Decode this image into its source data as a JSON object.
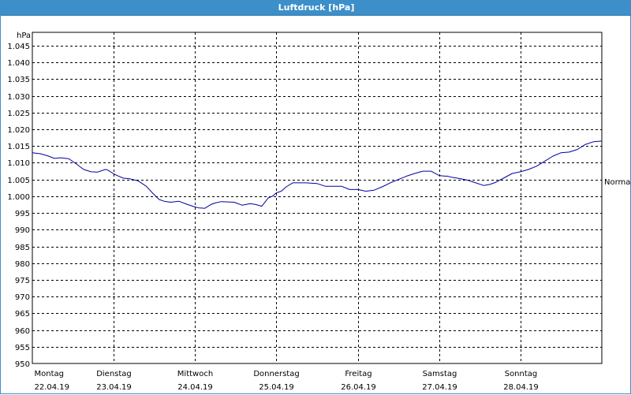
{
  "window": {
    "title": "Luftdruck [hPa]"
  },
  "colors": {
    "titlebar": "#3c8fc9",
    "line": "#0000a0",
    "grid": "#000000"
  },
  "chart_data": {
    "type": "line",
    "title": "Luftdruck [hPa]",
    "ylabel": "hPa",
    "ylim": [
      950,
      1049
    ],
    "y_ticks": [
      950,
      955,
      960,
      965,
      970,
      975,
      980,
      985,
      990,
      995,
      1000,
      1005,
      1010,
      1015,
      1020,
      1025,
      1030,
      1035,
      1040,
      1045
    ],
    "y_tick_labels": [
      "950",
      "955",
      "960",
      "965",
      "970",
      "975",
      "980",
      "985",
      "990",
      "995",
      "1.000",
      "1.005",
      "1.010",
      "1.015",
      "1.020",
      "1.025",
      "1.030",
      "1.035",
      "1.040",
      "1.045"
    ],
    "x_days": [
      {
        "weekday": "Montag",
        "date": "22.04.19"
      },
      {
        "weekday": "Dienstag",
        "date": "23.04.19"
      },
      {
        "weekday": "Mittwoch",
        "date": "24.04.19"
      },
      {
        "weekday": "Donnerstag",
        "date": "25.04.19"
      },
      {
        "weekday": "Freitag",
        "date": "26.04.19"
      },
      {
        "weekday": "Samstag",
        "date": "27.04.19"
      },
      {
        "weekday": "Sonntag",
        "date": "28.04.19"
      }
    ],
    "xlim_days": [
      0,
      7
    ],
    "grid": true,
    "annotations": [
      {
        "label": "Normal",
        "y": 1004.5
      }
    ],
    "series": [
      {
        "x_days": [
          0,
          0.1,
          0.2,
          0.27,
          0.35,
          0.45,
          0.55,
          0.63,
          0.72,
          0.8,
          0.9,
          0.93,
          1.0,
          1.06,
          1.12,
          1.2,
          1.3,
          1.4,
          1.48,
          1.56,
          1.62,
          1.7,
          1.8,
          1.9,
          2.0,
          2.05,
          2.12,
          2.2,
          2.25,
          2.32,
          2.4,
          2.48,
          2.58,
          2.68,
          2.75,
          2.82,
          2.9,
          2.95,
          3.0,
          3.06,
          3.12,
          3.2,
          3.3,
          3.36,
          3.5,
          3.6,
          3.7,
          3.8,
          3.9,
          4.0,
          4.1,
          4.2,
          4.3,
          4.4,
          4.5,
          4.6,
          4.7,
          4.8,
          4.9,
          5.0,
          5.07,
          5.1,
          5.15,
          5.25,
          5.35,
          5.45,
          5.55,
          5.62,
          5.7,
          5.8,
          5.9,
          6.0,
          6.1,
          6.2,
          6.3,
          6.4,
          6.5,
          6.6,
          6.7,
          6.8,
          6.9,
          7.0
        ],
        "values": [
          1013,
          1012.7,
          1012,
          1011.3,
          1011.5,
          1011.2,
          1009.5,
          1008,
          1007.3,
          1007.2,
          1008,
          1007.8,
          1006.7,
          1006,
          1005.4,
          1005.2,
          1004.6,
          1003,
          1000.9,
          999,
          998.5,
          998.2,
          998.5,
          997.6,
          996.8,
          996.5,
          996.4,
          997.6,
          998,
          998.4,
          998.3,
          998.2,
          997.3,
          997.8,
          997.5,
          997,
          999.5,
          1000,
          1001,
          1001.5,
          1002.8,
          1004,
          1004,
          1004,
          1003.8,
          1003,
          1003,
          1003,
          1002,
          1002,
          1001.5,
          1001.8,
          1002.8,
          1004,
          1005,
          1006,
          1006.8,
          1007.5,
          1007.5,
          1006.2,
          1006,
          1006,
          1005.7,
          1005.3,
          1004.8,
          1004,
          1003.2,
          1003.5,
          1004.2,
          1005.5,
          1006.8,
          1007.3,
          1008,
          1009,
          1010.5,
          1012,
          1013,
          1013.2,
          1014,
          1015.5,
          1016.3,
          1016.5
        ]
      }
    ]
  }
}
